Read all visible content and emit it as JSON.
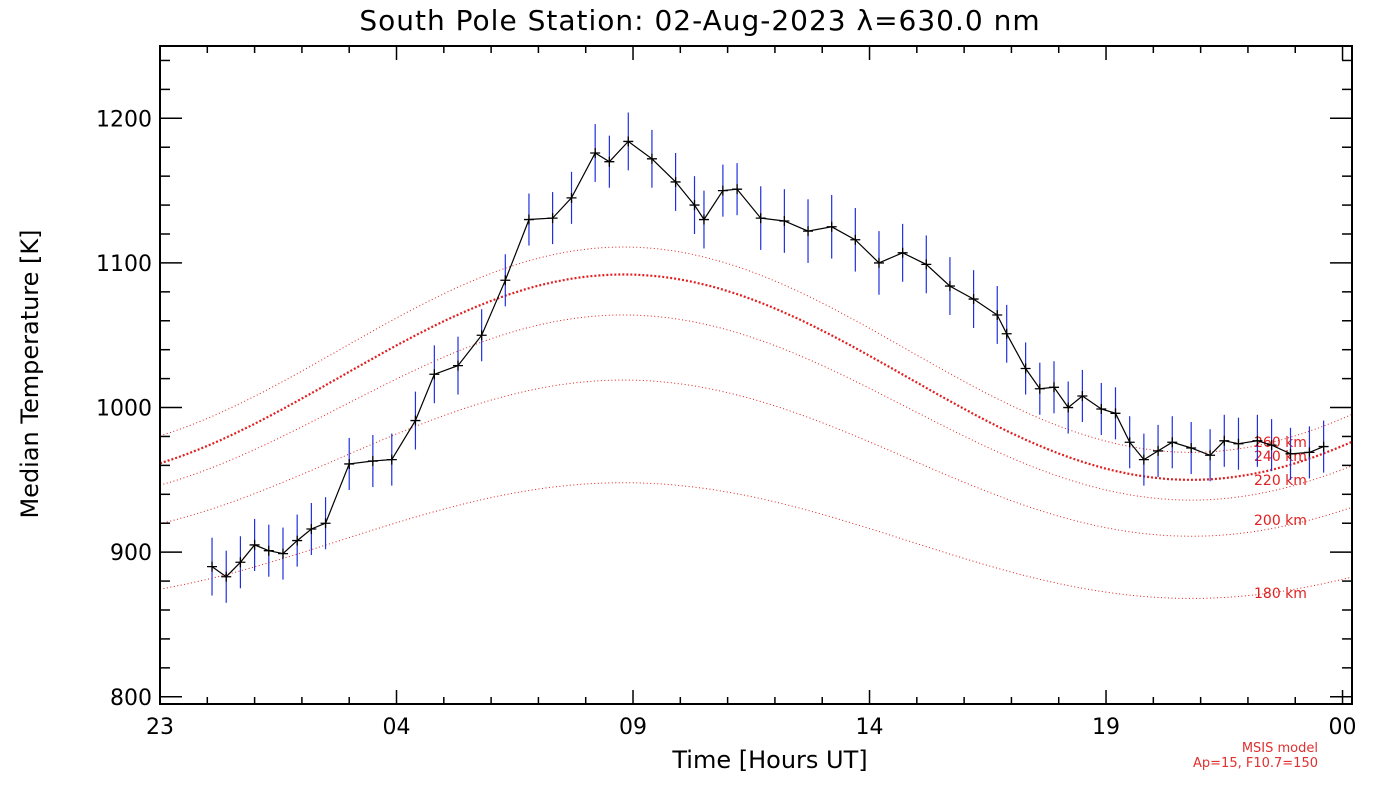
{
  "chart_data": {
    "type": "line",
    "title": "South Pole Station: 02-Aug-2023 λ=630.0 nm",
    "xlabel": "Time [Hours UT]",
    "ylabel": "Median Temperature [K]",
    "xlim": [
      23,
      48.2
    ],
    "ylim": [
      795,
      1250
    ],
    "x_ticks": [
      23,
      28,
      33,
      38,
      43,
      48
    ],
    "x_tick_labels": [
      "23",
      "04",
      "09",
      "14",
      "19",
      "00"
    ],
    "y_ticks": [
      800,
      900,
      1000,
      1100,
      1200
    ],
    "y_tick_labels": [
      "800",
      "900",
      "1000",
      "1100",
      "1200"
    ],
    "measured": {
      "name": "Median Temperature",
      "color": "#000000",
      "error_color": "#2030e0",
      "x": [
        24.1,
        24.4,
        24.7,
        25.0,
        25.3,
        25.6,
        25.9,
        26.2,
        26.5,
        27.0,
        27.5,
        27.9,
        28.4,
        28.8,
        29.3,
        29.8,
        30.3,
        30.8,
        31.3,
        31.7,
        32.2,
        32.5,
        32.9,
        33.4,
        33.9,
        34.3,
        34.5,
        34.9,
        35.2,
        35.7,
        36.2,
        36.7,
        37.2,
        37.7,
        38.2,
        38.7,
        39.2,
        39.7,
        40.2,
        40.7,
        40.9,
        41.3,
        41.6,
        41.9,
        42.2,
        42.5,
        42.9,
        43.2,
        43.5,
        43.8,
        44.1,
        44.4,
        44.8,
        45.2,
        45.5,
        45.8,
        46.2,
        46.5,
        46.9,
        47.3,
        47.6
      ],
      "y": [
        890,
        883,
        893,
        905,
        901,
        899,
        908,
        916,
        920,
        961,
        963,
        964,
        991,
        1023,
        1029,
        1050,
        1088,
        1130,
        1131,
        1145,
        1176,
        1170,
        1184,
        1172,
        1156,
        1140,
        1130,
        1150,
        1151,
        1131,
        1129,
        1122,
        1125,
        1116,
        1100,
        1107,
        1099,
        1084,
        1075,
        1064,
        1051,
        1027,
        1013,
        1014,
        1000,
        1008,
        999,
        996,
        976,
        964,
        970,
        976,
        972,
        967,
        977,
        975,
        977,
        974,
        968,
        969,
        973
      ],
      "error": [
        20,
        18,
        18,
        18,
        18,
        18,
        18,
        18,
        18,
        18,
        18,
        18,
        20,
        20,
        20,
        18,
        18,
        18,
        18,
        18,
        20,
        18,
        20,
        20,
        20,
        20,
        20,
        18,
        18,
        22,
        22,
        22,
        22,
        22,
        22,
        20,
        20,
        20,
        20,
        20,
        20,
        18,
        18,
        18,
        18,
        18,
        18,
        18,
        18,
        18,
        18,
        18,
        18,
        18,
        18,
        18,
        18,
        18,
        18,
        18,
        18
      ]
    },
    "model_series": [
      {
        "name": "260 km",
        "mean": 1040,
        "amplitude": 71,
        "bold": false
      },
      {
        "name": "240 km",
        "mean": 1021,
        "amplitude": 71,
        "bold": true
      },
      {
        "name": "220 km",
        "mean": 1000,
        "amplitude": 64,
        "bold": false
      },
      {
        "name": "200 km",
        "mean": 965,
        "amplitude": 54,
        "bold": false
      },
      {
        "name": "180 km",
        "mean": 908,
        "amplitude": 40,
        "bold": false
      }
    ],
    "model_peak_hour": 32.8,
    "model_period_hours": 24,
    "model_color": "#e02020",
    "annotation": {
      "line1": "MSIS model",
      "line2": "Ap=15, F10.7=150"
    }
  }
}
